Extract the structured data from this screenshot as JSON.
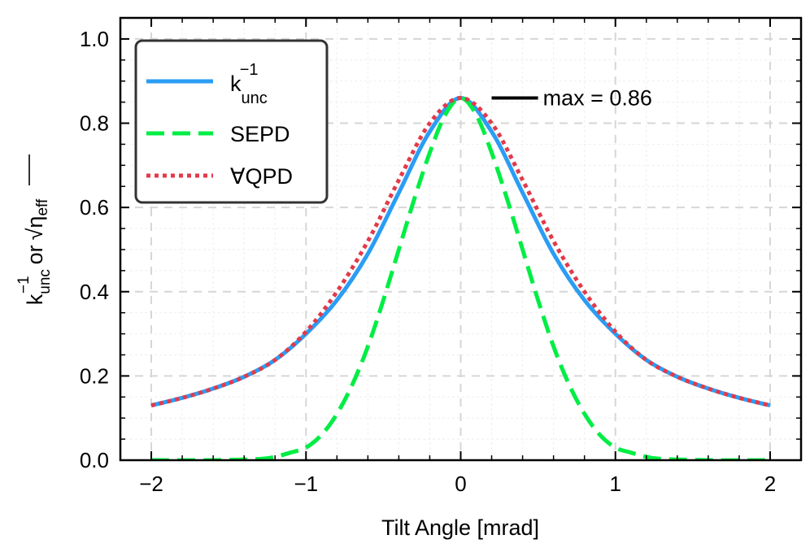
{
  "chart_data": {
    "type": "line",
    "xlabel": "Tilt Angle [mrad]",
    "ylabel": {
      "k": "k",
      "k_sub": "unc",
      "k_sup": "−1",
      "or": "or",
      "eta": "η",
      "eta_sub": "eff"
    },
    "xlim": [
      -2.2,
      2.2
    ],
    "ylim": [
      0.0,
      1.05
    ],
    "xticks": [
      -2,
      -1,
      0,
      1,
      2
    ],
    "xtick_labels": [
      "−2",
      "−1",
      "0",
      "1",
      "2"
    ],
    "yticks": [
      0.0,
      0.2,
      0.4,
      0.6,
      0.8,
      1.0
    ],
    "ytick_labels": [
      "0.0",
      "0.2",
      "0.4",
      "0.6",
      "0.8",
      "1.0"
    ],
    "grid": true,
    "legend_position": "top-left",
    "series": [
      {
        "name": "k_unc^-1",
        "legend": {
          "main": "k",
          "sub": "unc",
          "sup": "−1"
        },
        "color": "#2a9df4",
        "style": "solid",
        "x": [
          -2.0,
          -1.8,
          -1.6,
          -1.4,
          -1.2,
          -1.0,
          -0.8,
          -0.6,
          -0.4,
          -0.2,
          0.0,
          0.2,
          0.4,
          0.6,
          0.8,
          1.0,
          1.2,
          1.4,
          1.6,
          1.8,
          2.0
        ],
        "y": [
          0.13,
          0.148,
          0.17,
          0.198,
          0.238,
          0.3,
          0.38,
          0.49,
          0.635,
          0.78,
          0.86,
          0.78,
          0.635,
          0.49,
          0.38,
          0.3,
          0.238,
          0.198,
          0.17,
          0.148,
          0.13
        ]
      },
      {
        "name": "SEPD",
        "legend": {
          "main": "SEPD"
        },
        "color": "#00ee44",
        "style": "dashed",
        "x": [
          -2.0,
          -1.6,
          -1.3,
          -1.2,
          -1.1,
          -1.0,
          -0.9,
          -0.8,
          -0.7,
          -0.6,
          -0.5,
          -0.4,
          -0.3,
          -0.2,
          -0.1,
          0.0,
          0.1,
          0.2,
          0.3,
          0.4,
          0.5,
          0.6,
          0.7,
          0.8,
          0.9,
          1.0,
          1.1,
          1.2,
          1.3,
          1.6,
          2.0
        ],
        "y": [
          0.0,
          0.0,
          0.003,
          0.008,
          0.018,
          0.03,
          0.06,
          0.11,
          0.18,
          0.27,
          0.38,
          0.5,
          0.62,
          0.73,
          0.82,
          0.86,
          0.82,
          0.73,
          0.62,
          0.5,
          0.38,
          0.27,
          0.18,
          0.11,
          0.06,
          0.03,
          0.018,
          0.008,
          0.003,
          0.0,
          0.0
        ]
      },
      {
        "name": "∀QPD",
        "legend": {
          "main": "∀QPD"
        },
        "color": "#e23a4a",
        "style": "dotted",
        "x": [
          -2.0,
          -1.8,
          -1.6,
          -1.4,
          -1.2,
          -1.0,
          -0.8,
          -0.6,
          -0.4,
          -0.2,
          0.0,
          0.2,
          0.4,
          0.6,
          0.8,
          1.0,
          1.2,
          1.4,
          1.6,
          1.8,
          2.0
        ],
        "y": [
          0.13,
          0.148,
          0.17,
          0.198,
          0.238,
          0.305,
          0.4,
          0.52,
          0.665,
          0.8,
          0.86,
          0.8,
          0.665,
          0.52,
          0.4,
          0.305,
          0.238,
          0.198,
          0.17,
          0.148,
          0.13
        ]
      }
    ],
    "annotation": {
      "text": "max = 0.86",
      "x": 0.2,
      "x_end": 0.5,
      "y": 0.86,
      "color": "#000000"
    }
  }
}
